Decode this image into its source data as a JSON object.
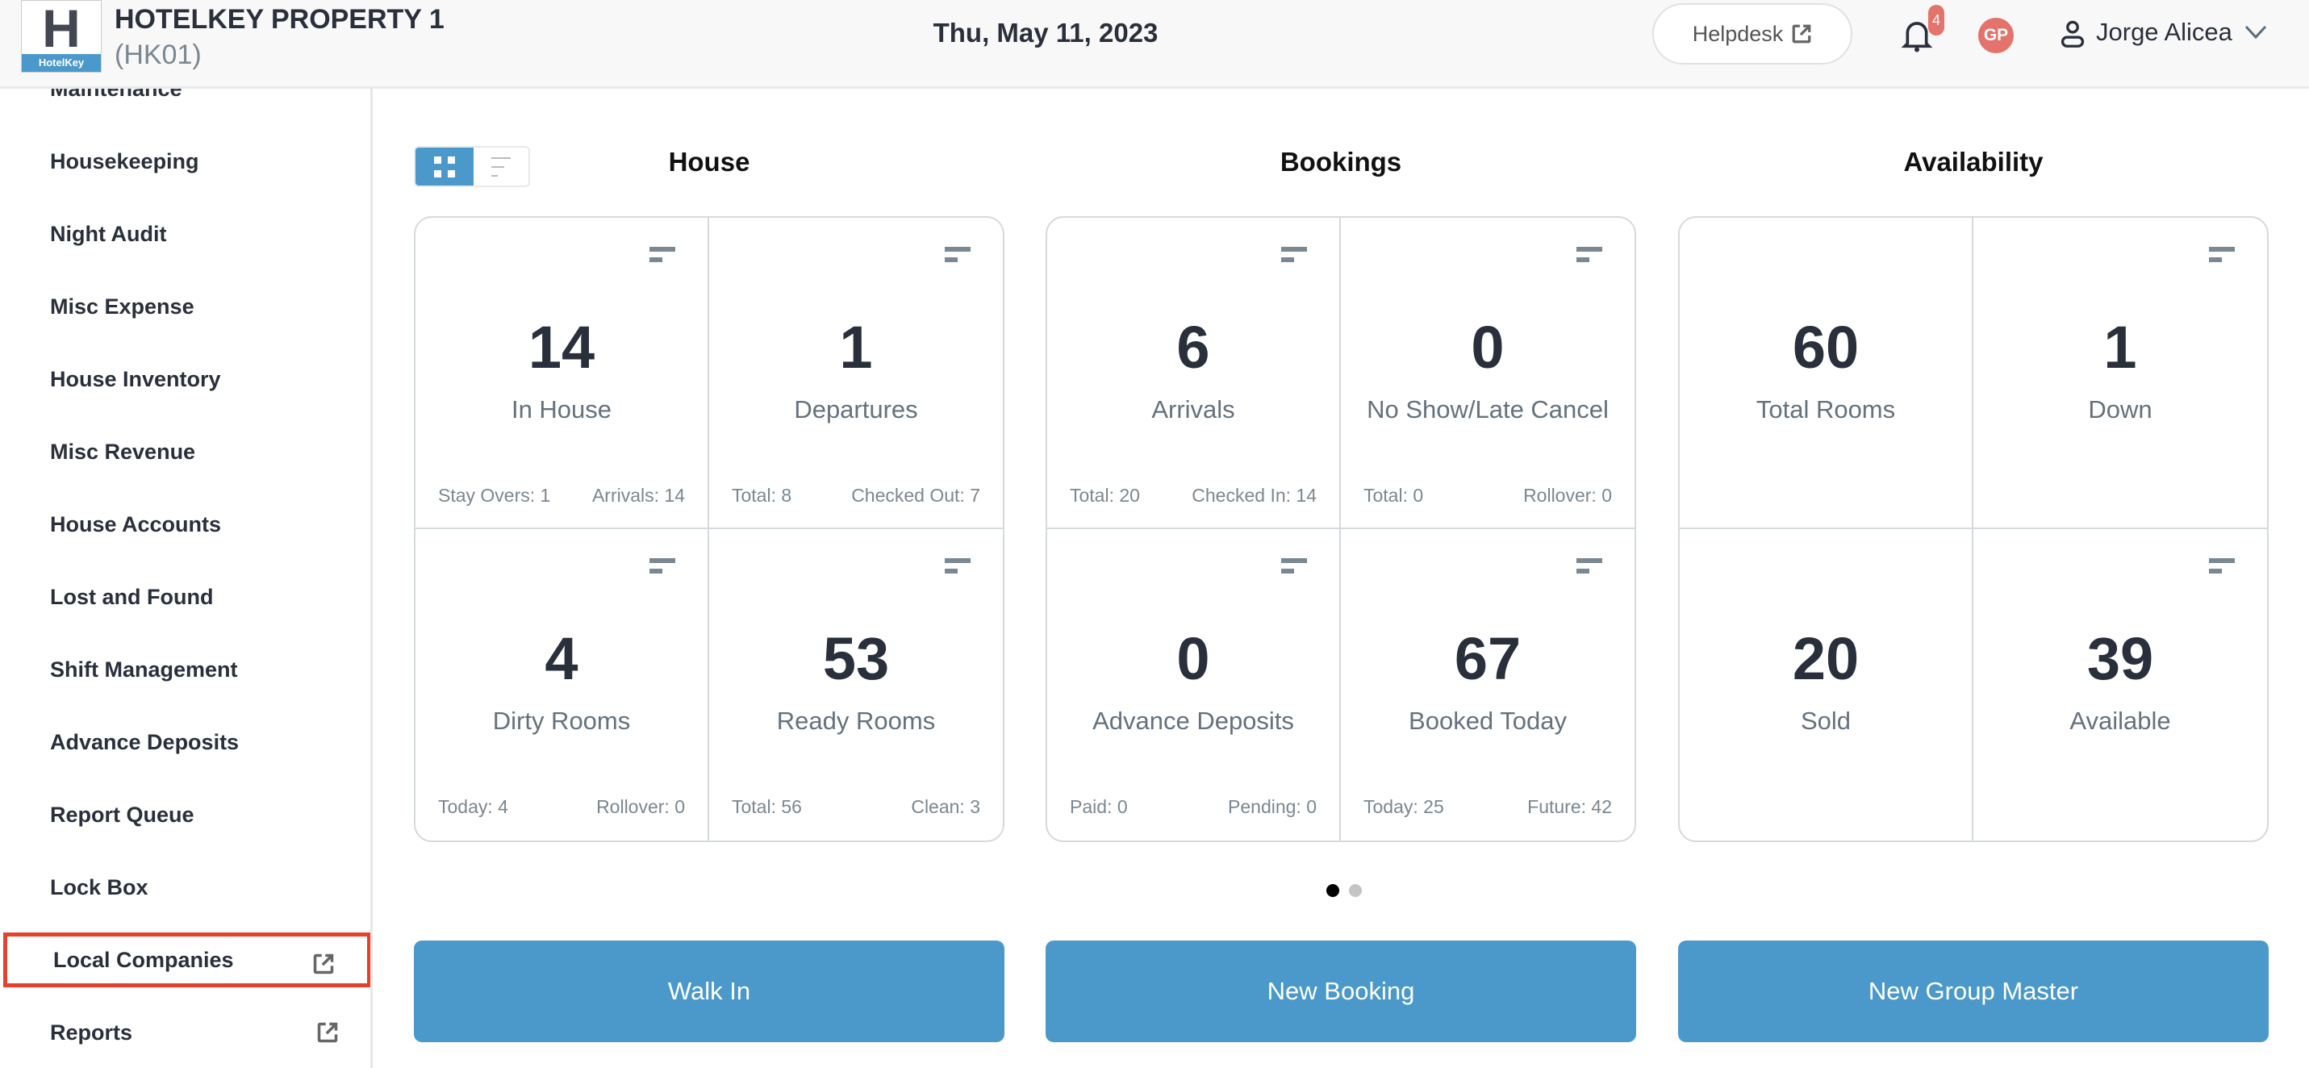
{
  "header": {
    "logo_text": "HotelKey",
    "property_name": "HOTELKEY PROPERTY 1",
    "property_code": "(HK01)",
    "date": "Thu, May 11, 2023",
    "helpdesk_label": "Helpdesk",
    "notification_count": "4",
    "avatar_initials": "GP",
    "user_name": "Jorge Alicea"
  },
  "sidebar": {
    "items": [
      {
        "label": "Maintenance"
      },
      {
        "label": "Housekeeping"
      },
      {
        "label": "Night Audit"
      },
      {
        "label": "Misc Expense"
      },
      {
        "label": "House Inventory"
      },
      {
        "label": "Misc Revenue"
      },
      {
        "label": "House Accounts"
      },
      {
        "label": "Lost and Found"
      },
      {
        "label": "Shift Management"
      },
      {
        "label": "Advance Deposits"
      },
      {
        "label": "Report Queue"
      },
      {
        "label": "Lock Box"
      },
      {
        "label": "Local Companies",
        "external": true,
        "highlighted": true
      },
      {
        "label": "Reports",
        "external": true
      }
    ]
  },
  "colors": {
    "accent": "#4b98cb",
    "highlight": "#e8412b",
    "badge": "#e4736c"
  },
  "sections": [
    {
      "title": "House",
      "action": "Walk In",
      "tiles": [
        {
          "value": "14",
          "label": "In House",
          "left": "Stay Overs: 1",
          "right": "Arrivals: 14",
          "menu": true
        },
        {
          "value": "1",
          "label": "Departures",
          "left": "Total: 8",
          "right": "Checked Out: 7",
          "menu": true
        },
        {
          "value": "4",
          "label": "Dirty Rooms",
          "left": "Today: 4",
          "right": "Rollover: 0",
          "menu": true
        },
        {
          "value": "53",
          "label": "Ready Rooms",
          "left": "Total: 56",
          "right": "Clean: 3",
          "menu": true
        }
      ]
    },
    {
      "title": "Bookings",
      "action": "New Booking",
      "tiles": [
        {
          "value": "6",
          "label": "Arrivals",
          "left": "Total: 20",
          "right": "Checked In: 14",
          "menu": true
        },
        {
          "value": "0",
          "label": "No Show/Late Cancel",
          "left": "Total: 0",
          "right": "Rollover: 0",
          "menu": true
        },
        {
          "value": "0",
          "label": "Advance Deposits",
          "left": "Paid: 0",
          "right": "Pending: 0",
          "menu": true
        },
        {
          "value": "67",
          "label": "Booked Today",
          "left": "Today: 25",
          "right": "Future: 42",
          "menu": true
        }
      ]
    },
    {
      "title": "Availability",
      "action": "New Group Master",
      "tiles": [
        {
          "value": "60",
          "label": "Total Rooms",
          "menu": false
        },
        {
          "value": "1",
          "label": "Down",
          "menu": true
        },
        {
          "value": "20",
          "label": "Sold",
          "menu": false
        },
        {
          "value": "39",
          "label": "Available",
          "menu": true
        }
      ]
    }
  ],
  "view_toggle": {
    "active": "grid"
  },
  "pager": {
    "pages": 2,
    "current": 1
  }
}
